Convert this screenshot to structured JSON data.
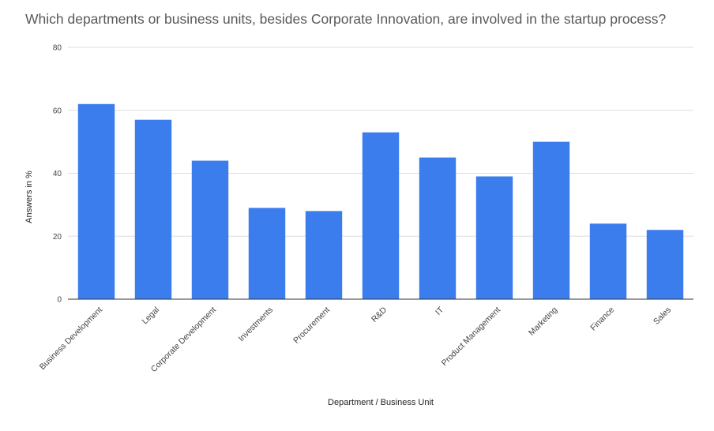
{
  "chart_data": {
    "type": "bar",
    "title": "Which departments or business units, besides Corporate Innovation, are involved in the startup process?",
    "xlabel": "Department / Business Unit",
    "ylabel": "Answers in %",
    "categories": [
      "Business Development",
      "Legal",
      "Corporate Development",
      "Investments",
      "Procurement",
      "R&D",
      "IT",
      "Product Management",
      "Marketing",
      "Finance",
      "Sales"
    ],
    "values": [
      62,
      57,
      44,
      29,
      28,
      53,
      45,
      39,
      50,
      24,
      22
    ],
    "ylim": [
      0,
      80
    ],
    "yticks": [
      "0",
      "20",
      "40",
      "60",
      "80"
    ],
    "grid": true,
    "legend": "none",
    "colors": {
      "bar": "#3b7ded",
      "grid": "#dddddd",
      "axis": "#333333"
    }
  }
}
